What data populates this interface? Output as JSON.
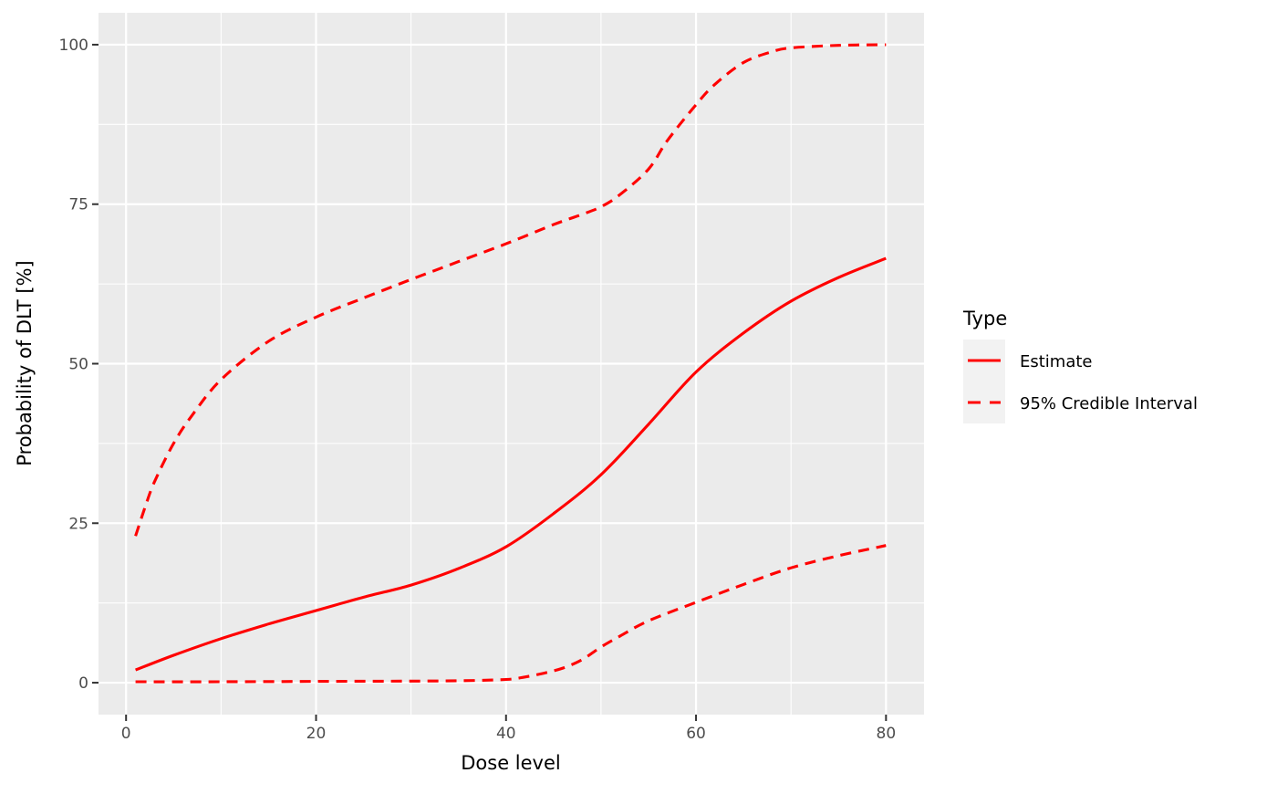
{
  "figure": {
    "background": "#FFFFFF",
    "panel_background": "#EBEBEB",
    "grid_color": "#FFFFFF",
    "accent_red": "#FF0000",
    "tick_mark_color": "#333333",
    "tick_label_color": "#4D4D4D",
    "title_color": "#000000",
    "legend_key_background": "#F2F2F2"
  },
  "chart_data": {
    "type": "line",
    "title": "",
    "xlabel": "Dose level",
    "ylabel": "Probability of DLT [%]",
    "xlim": [
      -2.9,
      84
    ],
    "ylim": [
      -5,
      105
    ],
    "x_ticks": [
      0,
      20,
      40,
      60,
      80
    ],
    "x_tick_labels": [
      "0",
      "20",
      "40",
      "60",
      "80"
    ],
    "x_minor_ticks": [
      10,
      30,
      50,
      70
    ],
    "y_ticks": [
      0,
      25,
      50,
      75,
      100
    ],
    "y_tick_labels": [
      "0",
      "25",
      "50",
      "75",
      "100"
    ],
    "y_minor_ticks": [
      12.5,
      37.5,
      62.5,
      87.5
    ],
    "grid": "white major and minor gridlines on grey panel (ggplot2 theme_grey)",
    "legend": {
      "title": "Type",
      "position": "right",
      "entries": [
        {
          "label": "Estimate",
          "linetype": "solid",
          "color": "#FF0000"
        },
        {
          "label": "95% Credible Interval",
          "linetype": "dashed",
          "color": "#FF0000"
        }
      ]
    },
    "series": [
      {
        "name": "Estimate",
        "linetype": "solid",
        "color": "#FF0000",
        "points": [
          [
            1,
            2.0
          ],
          [
            5,
            4.3
          ],
          [
            10,
            6.9
          ],
          [
            15,
            9.2
          ],
          [
            20,
            11.3
          ],
          [
            25,
            13.4
          ],
          [
            30,
            15.3
          ],
          [
            35,
            17.9
          ],
          [
            40,
            21.3
          ],
          [
            45,
            26.5
          ],
          [
            50,
            32.6
          ],
          [
            55,
            40.5
          ],
          [
            60,
            48.7
          ],
          [
            65,
            54.8
          ],
          [
            70,
            59.8
          ],
          [
            75,
            63.5
          ],
          [
            80,
            66.5
          ]
        ]
      },
      {
        "name": "95% Credible Interval (upper)",
        "linetype": "dashed",
        "color": "#FF0000",
        "points": [
          [
            1,
            23
          ],
          [
            2,
            27.5
          ],
          [
            3,
            31.5
          ],
          [
            5,
            37.5
          ],
          [
            7,
            42
          ],
          [
            10,
            47.5
          ],
          [
            15,
            53.5
          ],
          [
            20,
            57.3
          ],
          [
            25,
            60.3
          ],
          [
            30,
            63.2
          ],
          [
            35,
            66
          ],
          [
            40,
            68.8
          ],
          [
            45,
            71.8
          ],
          [
            48,
            73.4
          ],
          [
            50,
            74.6
          ],
          [
            52,
            76.5
          ],
          [
            55,
            80.5
          ],
          [
            57,
            85
          ],
          [
            60,
            90.6
          ],
          [
            62,
            93.8
          ],
          [
            65,
            97.2
          ],
          [
            68,
            98.9
          ],
          [
            70,
            99.5
          ],
          [
            75,
            99.9
          ],
          [
            80,
            100
          ]
        ]
      },
      {
        "name": "95% Credible Interval (lower)",
        "linetype": "dashed",
        "color": "#FF0000",
        "points": [
          [
            1,
            0.15
          ],
          [
            10,
            0.15
          ],
          [
            20,
            0.2
          ],
          [
            30,
            0.25
          ],
          [
            35,
            0.3
          ],
          [
            40,
            0.5
          ],
          [
            42,
            0.9
          ],
          [
            44,
            1.5
          ],
          [
            46,
            2.3
          ],
          [
            48,
            3.6
          ],
          [
            50,
            5.6
          ],
          [
            52,
            7.3
          ],
          [
            55,
            9.7
          ],
          [
            60,
            12.6
          ],
          [
            65,
            15.4
          ],
          [
            70,
            18.0
          ],
          [
            75,
            19.9
          ],
          [
            80,
            21.5
          ]
        ]
      }
    ]
  }
}
